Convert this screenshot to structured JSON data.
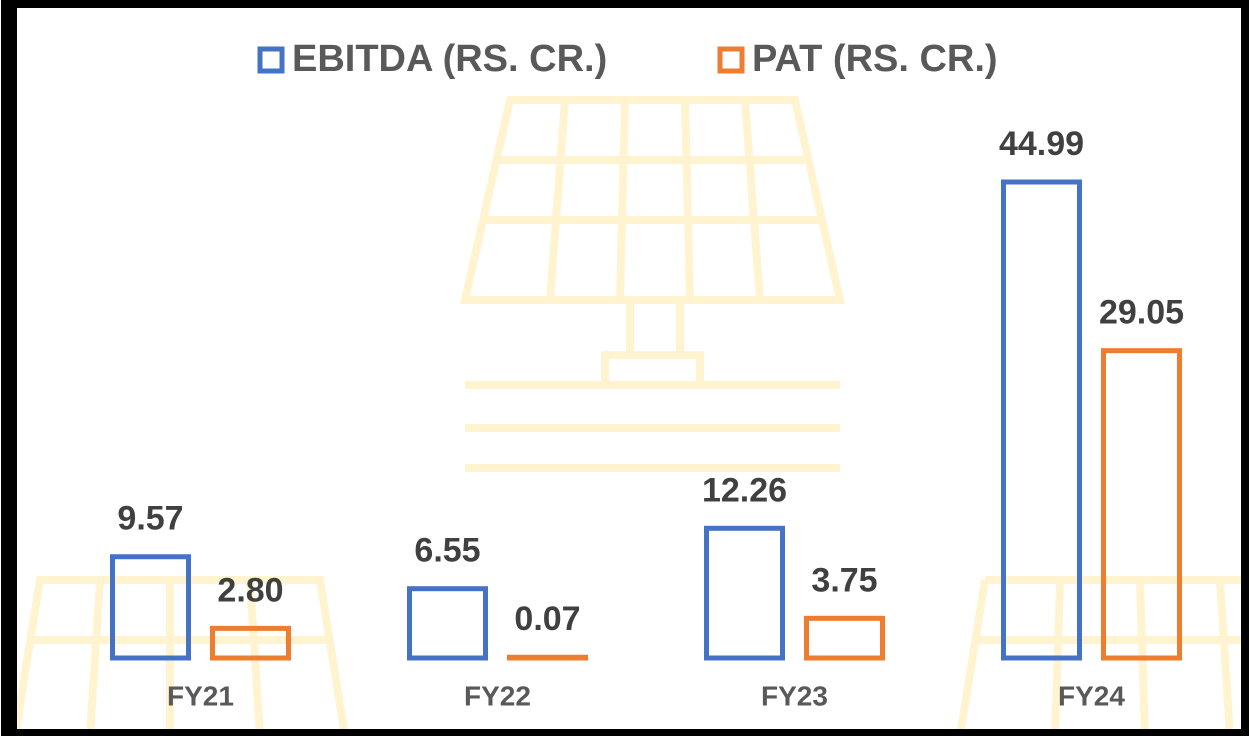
{
  "chart_data": {
    "type": "bar",
    "categories": [
      "FY21",
      "FY22",
      "FY23",
      "FY24"
    ],
    "series": [
      {
        "name": "EBITDA (RS. CR.)",
        "color": "#4472c4",
        "values": [
          9.57,
          6.55,
          12.26,
          44.99
        ]
      },
      {
        "name": "PAT (RS. CR.)",
        "color": "#ed7d31",
        "values": [
          2.8,
          0.07,
          3.75,
          29.05
        ],
        "value_labels": [
          "2.80",
          "0.07",
          "3.75",
          "29.05"
        ]
      }
    ]
  }
}
